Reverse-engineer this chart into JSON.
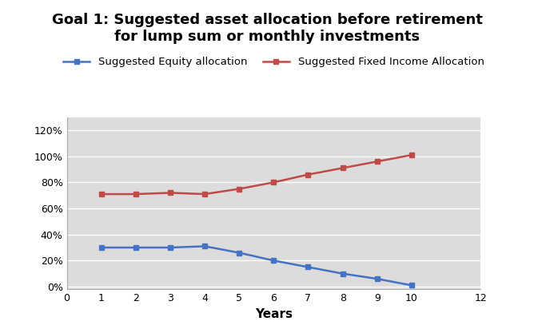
{
  "title": "Goal 1: Suggested asset allocation before retirement\nfor lump sum or monthly investments",
  "xlabel": "Years",
  "years": [
    1,
    2,
    3,
    4,
    5,
    6,
    7,
    8,
    9,
    10
  ],
  "equity": [
    0.3,
    0.3,
    0.3,
    0.31,
    0.26,
    0.2,
    0.15,
    0.1,
    0.06,
    0.01
  ],
  "fixed_income": [
    0.71,
    0.71,
    0.72,
    0.71,
    0.75,
    0.8,
    0.86,
    0.91,
    0.96,
    1.01
  ],
  "equity_color": "#4472C4",
  "fixed_income_color": "#BE4B48",
  "equity_label": "Suggested Equity allocation",
  "fixed_income_label": "Suggested Fixed Income Allocation",
  "xlim": [
    0,
    12
  ],
  "ylim": [
    -0.02,
    1.3
  ],
  "yticks": [
    0.0,
    0.2,
    0.4,
    0.6,
    0.8,
    1.0,
    1.2
  ],
  "xticks": [
    0,
    1,
    2,
    3,
    4,
    5,
    6,
    7,
    8,
    9,
    10,
    12
  ],
  "xtick_labels": [
    "0",
    "1",
    "2",
    "3",
    "4",
    "5",
    "6",
    "7",
    "8",
    "9",
    "10",
    "12"
  ],
  "fig_background": "#FFFFFF",
  "plot_background": "#DCDCDC",
  "grid_color": "#FFFFFF",
  "title_fontsize": 13,
  "tick_fontsize": 9,
  "xlabel_fontsize": 11,
  "legend_fontsize": 9.5
}
